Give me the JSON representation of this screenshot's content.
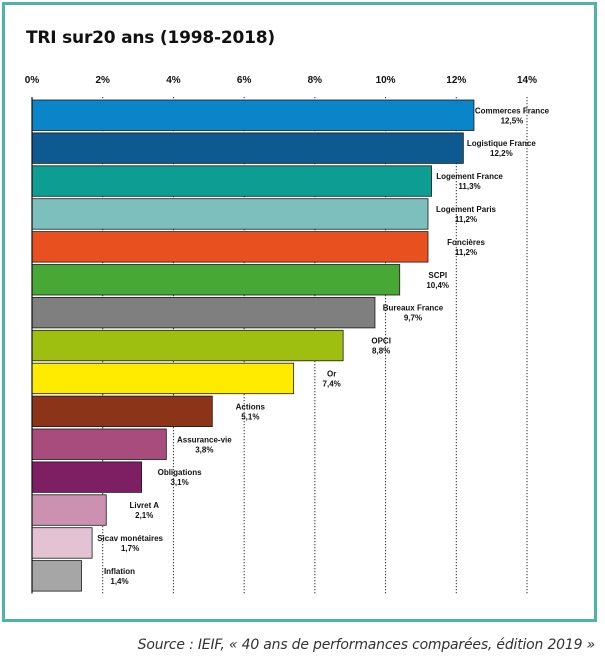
{
  "chart_data": {
    "type": "bar",
    "orientation": "horizontal",
    "title": "TRI sur20 ans (1998-2018)",
    "xlim": [
      0,
      14
    ],
    "ticks": [
      0,
      2,
      4,
      6,
      8,
      10,
      12,
      14
    ],
    "tick_labels": [
      "0%",
      "2%",
      "4%",
      "6%",
      "8%",
      "10%",
      "12%",
      "14%"
    ],
    "categories": [
      "Commerces France",
      "Logistique France",
      "Logement France",
      "Logement Paris",
      "Foncières",
      "SCPI",
      "Bureaux France",
      "OPCI",
      "Or",
      "Actions",
      "Assurance-vie",
      "Obligations",
      "Livret A",
      "Sicav monétaires",
      "Inflation"
    ],
    "values": [
      12.5,
      12.2,
      11.3,
      11.2,
      11.2,
      10.4,
      9.7,
      8.8,
      7.4,
      5.1,
      3.8,
      3.1,
      2.1,
      1.7,
      1.4
    ],
    "value_labels": [
      "12,5%",
      "12,2%",
      "11,3%",
      "11,2%",
      "11,2%",
      "10,4%",
      "9,7%",
      "8,8%",
      "7,4%",
      "5,1%",
      "3,8%",
      "3,1%",
      "2,1%",
      "1,7%",
      "1,4%"
    ],
    "colors": [
      "#0a85c9",
      "#0c5a8f",
      "#0e9d93",
      "#7dbfbd",
      "#e8511f",
      "#47a836",
      "#7f7f7f",
      "#9ebf0f",
      "#ffeb00",
      "#8b3417",
      "#a84c7e",
      "#7e1f63",
      "#cc90b0",
      "#e3c2d3",
      "#a6a6a6"
    ]
  },
  "source": "Source : IEIF, « 40 ans de performances comparées, édition 2019 »",
  "accent_color": "#4fb3ad"
}
